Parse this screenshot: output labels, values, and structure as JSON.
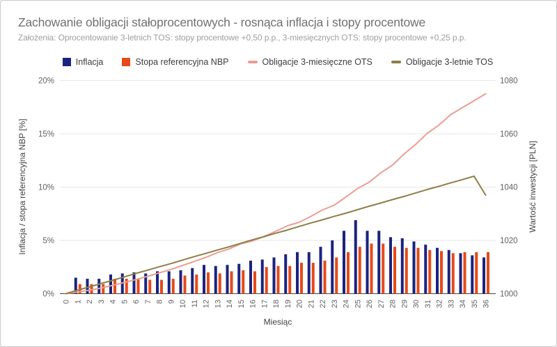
{
  "header": {
    "title": "Zachowanie obligacji stałoprocentowych - rosnąca inflacja i stopy procentowe",
    "subtitle": "Założenia: Oprocentowanie 3-letnich TOS: stopy procentowe +0,50 p.p., 3-miesięcznych OTS: stopy procentowe +0,25 p.p."
  },
  "colors": {
    "inflation_bar": "#1a237e",
    "nbp_bar": "#e54a18",
    "ots_line": "#ec9d94",
    "tos_line": "#8f7d46",
    "gridline": "#e6e6e6",
    "baseline": "#424242",
    "tick_label": "#616161"
  },
  "chart_data": {
    "type": "bar",
    "subtype": "combo-bar-line-dual-axis",
    "xlabel": "Miesiąc",
    "x": [
      0,
      1,
      2,
      3,
      4,
      5,
      6,
      7,
      8,
      9,
      10,
      11,
      12,
      13,
      14,
      15,
      16,
      17,
      18,
      19,
      20,
      21,
      22,
      23,
      24,
      25,
      26,
      27,
      28,
      29,
      30,
      31,
      32,
      33,
      34,
      35,
      36
    ],
    "y_left": {
      "label": "Inflacja / stopa referencyjna NBP [%]",
      "tick_labels": [
        "0%",
        "5%",
        "10%",
        "15%",
        "20%"
      ],
      "ticks": [
        0,
        5,
        10,
        15,
        20
      ],
      "range": [
        0,
        20
      ]
    },
    "y_right": {
      "label": "Wartość inwestycji [PLN]",
      "tick_labels": [
        "1000",
        "1020",
        "1040",
        "1060",
        "1080"
      ],
      "ticks": [
        1000,
        1020,
        1040,
        1060,
        1080
      ],
      "range": [
        1000,
        1080
      ]
    },
    "legend_position": "top-center",
    "grid": true,
    "series": [
      {
        "name": "Inflacja",
        "type": "bar",
        "axis": "left",
        "color": "#1a237e",
        "values": [
          0,
          1.5,
          1.4,
          1.4,
          1.8,
          1.9,
          2.0,
          1.9,
          2.1,
          2.1,
          2.2,
          2.4,
          2.7,
          2.6,
          2.7,
          2.8,
          3.1,
          3.2,
          3.4,
          3.7,
          3.9,
          3.9,
          4.4,
          5.0,
          5.9,
          6.9,
          5.9,
          5.9,
          5.3,
          5.2,
          4.9,
          4.6,
          4.3,
          4.1,
          3.8,
          3.6,
          3.4
        ]
      },
      {
        "name": "Stopa referencyjna NBP",
        "type": "bar",
        "axis": "left",
        "color": "#e54a18",
        "values": [
          0,
          0.9,
          0.9,
          0.9,
          1.4,
          1.4,
          1.4,
          1.3,
          1.3,
          1.4,
          1.7,
          1.8,
          2.0,
          1.9,
          2.1,
          2.2,
          2.1,
          2.5,
          2.6,
          2.6,
          2.9,
          2.9,
          3.1,
          3.4,
          3.9,
          4.4,
          4.7,
          4.7,
          4.4,
          4.3,
          4.3,
          4.1,
          4.0,
          3.8,
          3.9,
          3.9,
          3.9
        ]
      },
      {
        "name": "Obligacje 3-miesięczne OTS",
        "type": "line",
        "axis": "right",
        "color": "#ec9d94",
        "values": [
          1000,
          1000.6,
          1001.3,
          1002.1,
          1003.1,
          1004.2,
          1005.3,
          1006.5,
          1007.8,
          1009.1,
          1010.6,
          1012.1,
          1013.6,
          1015.4,
          1016.8,
          1018.7,
          1019.8,
          1021.5,
          1023.4,
          1025.5,
          1026.8,
          1029.0,
          1031.4,
          1033.2,
          1036.2,
          1039.4,
          1041.8,
          1045.3,
          1048.2,
          1052.4,
          1056.0,
          1060.2,
          1063.3,
          1067.2,
          1069.8,
          1072.4,
          1075.0
        ]
      },
      {
        "name": "Obligacje 3-letnie TOS",
        "type": "line",
        "axis": "right",
        "color": "#8f7d46",
        "values": [
          1000,
          1001.3,
          1002.5,
          1003.8,
          1005.0,
          1006.3,
          1007.6,
          1008.8,
          1010.1,
          1011.3,
          1012.6,
          1013.9,
          1015.1,
          1016.4,
          1017.6,
          1018.9,
          1020.2,
          1021.4,
          1022.7,
          1023.9,
          1025.2,
          1026.5,
          1027.7,
          1029.0,
          1030.2,
          1031.5,
          1032.8,
          1034.0,
          1035.3,
          1036.5,
          1037.8,
          1039.1,
          1040.3,
          1041.6,
          1042.8,
          1044.1,
          1037.0
        ]
      }
    ]
  }
}
